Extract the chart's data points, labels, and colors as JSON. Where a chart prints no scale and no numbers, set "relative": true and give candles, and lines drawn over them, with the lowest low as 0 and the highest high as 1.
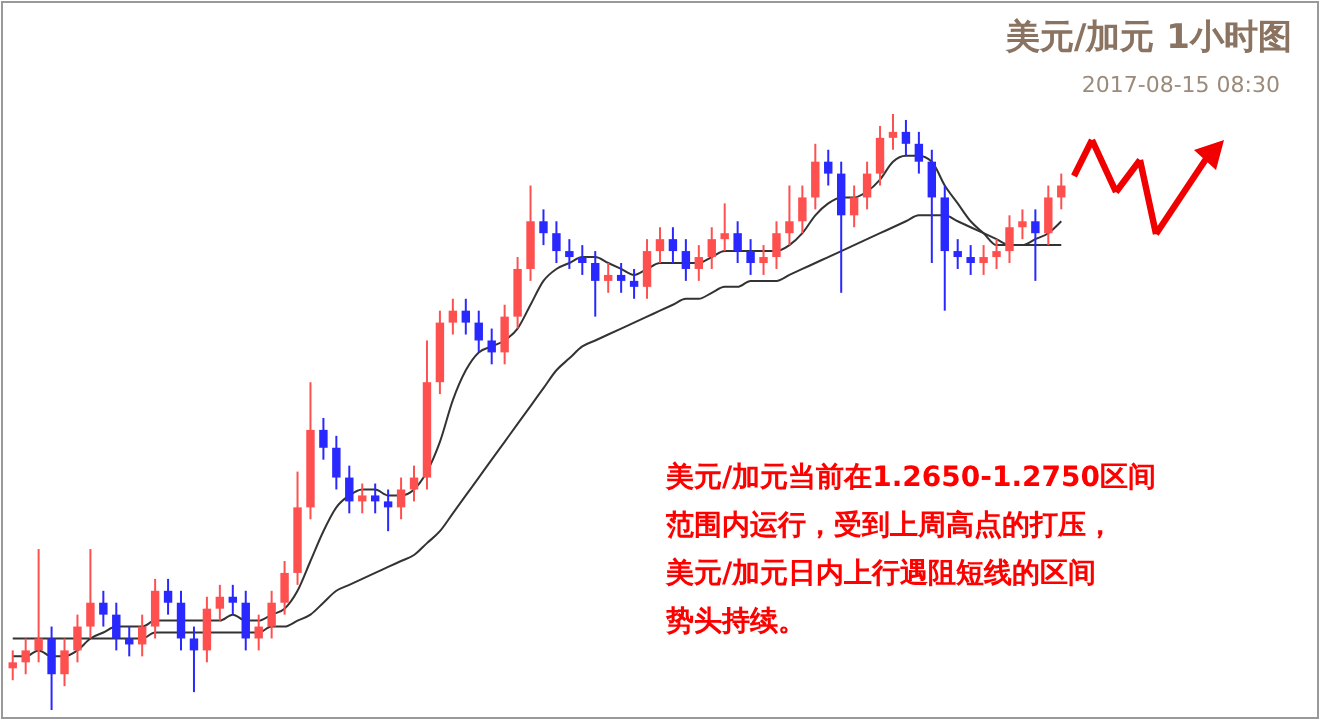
{
  "chart_data": {
    "type": "candlestick",
    "relative": true,
    "title": "美元/加元 1小时图",
    "subtitle": "2017-08-15 08:30",
    "annotations": [
      "美元/加元当前在1.2650-1.2750区间",
      "范围内运行，受到上周高点的打压，",
      "美元/加元日内上行遇阻短线的区间",
      "势头持续。"
    ],
    "categories": [
      null,
      null,
      null,
      null,
      null,
      null,
      null,
      null,
      null,
      null,
      null,
      null,
      null,
      null,
      null,
      null,
      null,
      null,
      null,
      null,
      null,
      null,
      null,
      null,
      null,
      null,
      null,
      null,
      null,
      null,
      null,
      null,
      null,
      null,
      null,
      null,
      null,
      null,
      null,
      null,
      null,
      null,
      null,
      null,
      null,
      null,
      null,
      null,
      null,
      null,
      null,
      null,
      null,
      null,
      null,
      null,
      null,
      null,
      null,
      null,
      null,
      null,
      null,
      null,
      null,
      null,
      null,
      null,
      null,
      null,
      null,
      null,
      null,
      null,
      null,
      null,
      null,
      null,
      null,
      null,
      null,
      null
    ],
    "ohlc": [
      [
        0.07,
        0.1,
        0.05,
        0.08
      ],
      [
        0.08,
        0.12,
        0.06,
        0.1
      ],
      [
        0.1,
        0.27,
        0.08,
        0.12
      ],
      [
        0.12,
        0.14,
        0.0,
        0.06
      ],
      [
        0.06,
        0.12,
        0.04,
        0.1
      ],
      [
        0.1,
        0.16,
        0.08,
        0.14
      ],
      [
        0.14,
        0.27,
        0.12,
        0.18
      ],
      [
        0.18,
        0.2,
        0.14,
        0.16
      ],
      [
        0.16,
        0.18,
        0.1,
        0.12
      ],
      [
        0.12,
        0.14,
        0.09,
        0.11
      ],
      [
        0.11,
        0.16,
        0.09,
        0.14
      ],
      [
        0.14,
        0.22,
        0.12,
        0.2
      ],
      [
        0.2,
        0.22,
        0.16,
        0.18
      ],
      [
        0.18,
        0.2,
        0.1,
        0.12
      ],
      [
        0.12,
        0.14,
        0.03,
        0.1
      ],
      [
        0.1,
        0.19,
        0.08,
        0.17
      ],
      [
        0.17,
        0.21,
        0.15,
        0.19
      ],
      [
        0.19,
        0.21,
        0.16,
        0.18
      ],
      [
        0.18,
        0.2,
        0.1,
        0.12
      ],
      [
        0.12,
        0.16,
        0.1,
        0.14
      ],
      [
        0.14,
        0.2,
        0.12,
        0.18
      ],
      [
        0.18,
        0.25,
        0.16,
        0.23
      ],
      [
        0.23,
        0.4,
        0.21,
        0.34
      ],
      [
        0.34,
        0.55,
        0.32,
        0.47
      ],
      [
        0.47,
        0.49,
        0.42,
        0.44
      ],
      [
        0.44,
        0.46,
        0.37,
        0.39
      ],
      [
        0.39,
        0.41,
        0.33,
        0.35
      ],
      [
        0.35,
        0.38,
        0.33,
        0.36
      ],
      [
        0.36,
        0.38,
        0.33,
        0.35
      ],
      [
        0.35,
        0.37,
        0.3,
        0.34
      ],
      [
        0.34,
        0.39,
        0.32,
        0.37
      ],
      [
        0.37,
        0.41,
        0.35,
        0.39
      ],
      [
        0.39,
        0.62,
        0.37,
        0.55
      ],
      [
        0.55,
        0.67,
        0.53,
        0.65
      ],
      [
        0.65,
        0.69,
        0.63,
        0.67
      ],
      [
        0.67,
        0.69,
        0.63,
        0.65
      ],
      [
        0.65,
        0.67,
        0.6,
        0.62
      ],
      [
        0.62,
        0.64,
        0.58,
        0.6
      ],
      [
        0.6,
        0.68,
        0.58,
        0.66
      ],
      [
        0.66,
        0.76,
        0.64,
        0.74
      ],
      [
        0.74,
        0.88,
        0.72,
        0.82
      ],
      [
        0.82,
        0.84,
        0.78,
        0.8
      ],
      [
        0.8,
        0.82,
        0.75,
        0.77
      ],
      [
        0.77,
        0.79,
        0.74,
        0.76
      ],
      [
        0.76,
        0.78,
        0.73,
        0.75
      ],
      [
        0.75,
        0.77,
        0.66,
        0.72
      ],
      [
        0.72,
        0.75,
        0.7,
        0.73
      ],
      [
        0.73,
        0.75,
        0.7,
        0.72
      ],
      [
        0.72,
        0.74,
        0.69,
        0.71
      ],
      [
        0.71,
        0.79,
        0.69,
        0.77
      ],
      [
        0.77,
        0.81,
        0.75,
        0.79
      ],
      [
        0.79,
        0.81,
        0.75,
        0.77
      ],
      [
        0.77,
        0.79,
        0.72,
        0.74
      ],
      [
        0.74,
        0.78,
        0.72,
        0.76
      ],
      [
        0.76,
        0.81,
        0.74,
        0.79
      ],
      [
        0.79,
        0.85,
        0.77,
        0.8
      ],
      [
        0.8,
        0.82,
        0.75,
        0.77
      ],
      [
        0.77,
        0.79,
        0.73,
        0.75
      ],
      [
        0.75,
        0.78,
        0.73,
        0.76
      ],
      [
        0.76,
        0.82,
        0.74,
        0.8
      ],
      [
        0.8,
        0.88,
        0.78,
        0.82
      ],
      [
        0.82,
        0.88,
        0.8,
        0.86
      ],
      [
        0.86,
        0.95,
        0.84,
        0.92
      ],
      [
        0.92,
        0.94,
        0.88,
        0.9
      ],
      [
        0.9,
        0.92,
        0.7,
        0.83
      ],
      [
        0.83,
        0.88,
        0.81,
        0.86
      ],
      [
        0.86,
        0.92,
        0.84,
        0.9
      ],
      [
        0.9,
        0.98,
        0.88,
        0.96
      ],
      [
        0.96,
        1.0,
        0.94,
        0.97
      ],
      [
        0.97,
        0.99,
        0.93,
        0.95
      ],
      [
        0.95,
        0.97,
        0.9,
        0.92
      ],
      [
        0.92,
        0.94,
        0.75,
        0.86
      ],
      [
        0.86,
        0.88,
        0.67,
        0.77
      ],
      [
        0.77,
        0.79,
        0.74,
        0.76
      ],
      [
        0.76,
        0.78,
        0.73,
        0.75
      ],
      [
        0.75,
        0.78,
        0.73,
        0.76
      ],
      [
        0.76,
        0.79,
        0.74,
        0.77
      ],
      [
        0.77,
        0.83,
        0.75,
        0.81
      ],
      [
        0.81,
        0.84,
        0.79,
        0.82
      ],
      [
        0.82,
        0.84,
        0.72,
        0.8
      ],
      [
        0.8,
        0.88,
        0.78,
        0.86
      ],
      [
        0.86,
        0.9,
        0.84,
        0.88
      ]
    ],
    "colors": [
      "#ff5050",
      "#ff5050",
      "#ff5050",
      "#2828ff",
      "#ff5050",
      "#ff5050",
      "#ff5050",
      "#2828ff",
      "#2828ff",
      "#2828ff",
      "#ff5050",
      "#ff5050",
      "#2828ff",
      "#2828ff",
      "#2828ff",
      "#ff5050",
      "#ff5050",
      "#2828ff",
      "#2828ff",
      "#ff5050",
      "#ff5050",
      "#ff5050",
      "#ff5050",
      "#ff5050",
      "#2828ff",
      "#2828ff",
      "#2828ff",
      "#ff5050",
      "#2828ff",
      "#2828ff",
      "#ff5050",
      "#ff5050",
      "#ff5050",
      "#ff5050",
      "#ff5050",
      "#2828ff",
      "#2828ff",
      "#2828ff",
      "#ff5050",
      "#ff5050",
      "#ff5050",
      "#2828ff",
      "#2828ff",
      "#2828ff",
      "#2828ff",
      "#2828ff",
      "#ff5050",
      "#2828ff",
      "#2828ff",
      "#ff5050",
      "#ff5050",
      "#2828ff",
      "#2828ff",
      "#ff5050",
      "#ff5050",
      "#ff5050",
      "#2828ff",
      "#2828ff",
      "#ff5050",
      "#ff5050",
      "#ff5050",
      "#ff5050",
      "#ff5050",
      "#2828ff",
      "#2828ff",
      "#ff5050",
      "#ff5050",
      "#ff5050",
      "#ff5050",
      "#2828ff",
      "#2828ff",
      "#2828ff",
      "#2828ff",
      "#2828ff",
      "#2828ff",
      "#ff5050",
      "#ff5050",
      "#ff5050",
      "#ff5050",
      "#2828ff",
      "#ff5050",
      "#ff5050"
    ],
    "series": [
      {
        "type": "line",
        "color": "#333333",
        "values": [
          0.09,
          0.09,
          0.1,
          0.09,
          0.09,
          0.1,
          0.12,
          0.13,
          0.14,
          0.14,
          0.14,
          0.15,
          0.15,
          0.15,
          0.15,
          0.15,
          0.15,
          0.16,
          0.15,
          0.15,
          0.16,
          0.17,
          0.2,
          0.25,
          0.3,
          0.34,
          0.36,
          0.37,
          0.37,
          0.36,
          0.36,
          0.37,
          0.4,
          0.45,
          0.52,
          0.57,
          0.6,
          0.61,
          0.62,
          0.64,
          0.68,
          0.72,
          0.74,
          0.75,
          0.76,
          0.76,
          0.75,
          0.74,
          0.73,
          0.74,
          0.75,
          0.75,
          0.75,
          0.75,
          0.76,
          0.77,
          0.77,
          0.77,
          0.77,
          0.77,
          0.78,
          0.8,
          0.83,
          0.85,
          0.86,
          0.86,
          0.87,
          0.89,
          0.92,
          0.93,
          0.93,
          0.92,
          0.88,
          0.85,
          0.82,
          0.8,
          0.78,
          0.78,
          0.78,
          0.79,
          0.8,
          0.82
        ]
      },
      {
        "type": "line",
        "color": "#333333",
        "values": [
          0.12,
          0.12,
          0.12,
          0.12,
          0.12,
          0.12,
          0.12,
          0.12,
          0.12,
          0.12,
          0.12,
          0.13,
          0.13,
          0.13,
          0.13,
          0.13,
          0.13,
          0.13,
          0.13,
          0.13,
          0.14,
          0.14,
          0.15,
          0.16,
          0.18,
          0.2,
          0.21,
          0.22,
          0.23,
          0.24,
          0.25,
          0.26,
          0.28,
          0.3,
          0.33,
          0.36,
          0.39,
          0.42,
          0.45,
          0.48,
          0.51,
          0.54,
          0.57,
          0.59,
          0.61,
          0.62,
          0.63,
          0.64,
          0.65,
          0.66,
          0.67,
          0.68,
          0.69,
          0.69,
          0.7,
          0.71,
          0.71,
          0.72,
          0.72,
          0.72,
          0.73,
          0.74,
          0.75,
          0.76,
          0.77,
          0.78,
          0.79,
          0.8,
          0.81,
          0.82,
          0.83,
          0.83,
          0.83,
          0.82,
          0.81,
          0.8,
          0.79,
          0.78,
          0.78,
          0.78,
          0.78,
          0.78
        ]
      }
    ]
  }
}
